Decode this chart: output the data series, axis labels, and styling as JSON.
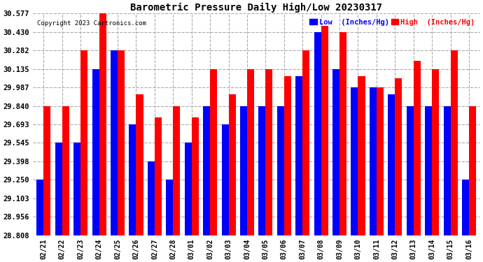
{
  "title": "Barometric Pressure Daily High/Low 20230317",
  "copyright": "Copyright 2023 Cartronics.com",
  "legend_low": "Low  (Inches/Hg)",
  "legend_high": "High  (Inches/Hg)",
  "background_color": "#ffffff",
  "low_color": "#0000ff",
  "high_color": "#ff0000",
  "dates": [
    "02/21",
    "02/22",
    "02/23",
    "02/24",
    "02/25",
    "02/26",
    "02/27",
    "02/28",
    "03/01",
    "03/02",
    "03/03",
    "03/04",
    "03/05",
    "03/06",
    "03/07",
    "03/08",
    "03/09",
    "03/10",
    "03/11",
    "03/12",
    "03/13",
    "03/14",
    "03/15",
    "03/16"
  ],
  "high_values": [
    29.84,
    29.84,
    30.282,
    30.577,
    30.282,
    29.93,
    29.75,
    29.84,
    29.75,
    30.135,
    29.93,
    30.135,
    30.135,
    30.075,
    30.282,
    30.48,
    30.43,
    30.075,
    29.987,
    30.062,
    30.2,
    30.135,
    30.282,
    29.84
  ],
  "low_values": [
    29.25,
    29.545,
    29.545,
    30.135,
    30.282,
    29.693,
    29.398,
    29.25,
    29.545,
    29.84,
    29.693,
    29.84,
    29.84,
    29.84,
    30.075,
    30.43,
    30.135,
    29.987,
    29.987,
    29.93,
    29.84,
    29.84,
    29.84,
    29.25
  ],
  "yticks": [
    28.808,
    28.956,
    29.103,
    29.25,
    29.398,
    29.545,
    29.693,
    29.84,
    29.987,
    30.135,
    30.282,
    30.43,
    30.577
  ],
  "ymin": 28.808,
  "ymax": 30.577,
  "grid_color": "#aaaaaa",
  "bar_width": 0.38
}
